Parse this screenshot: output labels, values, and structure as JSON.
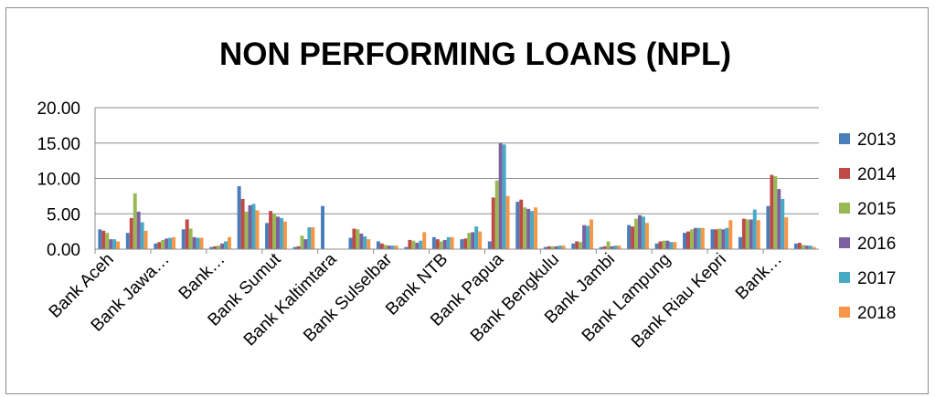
{
  "chart_data": {
    "type": "bar",
    "title": "NON PERFORMING LOANS (NPL)",
    "xlabel": "",
    "ylabel": "",
    "ylim": [
      0,
      20
    ],
    "y_ticks": [
      "0.00",
      "5.00",
      "10.00",
      "15.00",
      "20.00"
    ],
    "grid": true,
    "legend_position": "right",
    "tick_labels": [
      "Bank Aceh",
      "Bank Jawa…",
      "Bank…",
      "Bank Sumut",
      "Bank Kaltimtara",
      "Bank Sulselbar",
      "Bank NTB",
      "Bank Papua",
      "Bank Bengkulu",
      "Bank Jambi",
      "Bank Lampung",
      "Bank Riau Kepri",
      "Bank…"
    ],
    "group_count": 26,
    "series": [
      {
        "name": "2013",
        "color": "#4a7ebb",
        "values": [
          2.8,
          2.3,
          0.8,
          2.8,
          0.3,
          8.9,
          3.7,
          0.3,
          6.1,
          1.6,
          1.1,
          0.3,
          1.7,
          1.4,
          1.1,
          6.7,
          0.3,
          0.8,
          0.3,
          3.4,
          0.8,
          2.3,
          2.8,
          1.7,
          6.1,
          0.8
        ]
      },
      {
        "name": "2014",
        "color": "#be4b48",
        "values": [
          2.6,
          4.4,
          1.0,
          4.2,
          0.4,
          7.1,
          5.4,
          0.4,
          0.0,
          2.9,
          0.8,
          1.3,
          1.4,
          1.5,
          7.3,
          7.0,
          0.4,
          1.1,
          0.4,
          3.2,
          1.1,
          2.5,
          2.8,
          4.3,
          10.5,
          0.9
        ]
      },
      {
        "name": "2015",
        "color": "#98b954",
        "values": [
          2.3,
          7.9,
          1.3,
          2.9,
          0.5,
          5.3,
          5.0,
          1.9,
          0.0,
          2.8,
          0.6,
          1.2,
          1.1,
          2.3,
          9.7,
          5.9,
          0.4,
          1.0,
          1.1,
          4.3,
          1.2,
          2.8,
          2.9,
          4.2,
          10.3,
          0.6
        ]
      },
      {
        "name": "2016",
        "color": "#7d60a0",
        "values": [
          1.4,
          5.3,
          1.5,
          1.7,
          0.8,
          6.2,
          4.6,
          1.4,
          0.0,
          2.2,
          0.5,
          0.9,
          1.3,
          2.4,
          15.0,
          5.7,
          0.4,
          3.4,
          0.4,
          4.8,
          1.2,
          3.0,
          2.8,
          4.2,
          8.5,
          0.5
        ]
      },
      {
        "name": "2017",
        "color": "#46aac5",
        "values": [
          1.4,
          3.8,
          1.6,
          1.6,
          1.1,
          6.4,
          4.4,
          3.1,
          0.0,
          1.8,
          0.5,
          1.2,
          1.7,
          3.2,
          14.8,
          5.4,
          0.5,
          3.3,
          0.5,
          4.6,
          1.0,
          3.0,
          3.0,
          5.6,
          7.1,
          0.5
        ]
      },
      {
        "name": "2018",
        "color": "#f79646",
        "values": [
          1.1,
          2.6,
          1.7,
          1.6,
          1.7,
          5.5,
          3.9,
          3.1,
          0.0,
          1.4,
          0.5,
          2.4,
          1.7,
          2.5,
          7.5,
          5.9,
          0.5,
          4.2,
          0.5,
          3.7,
          1.0,
          3.0,
          4.1,
          4.1,
          4.5,
          0.3
        ]
      }
    ]
  }
}
